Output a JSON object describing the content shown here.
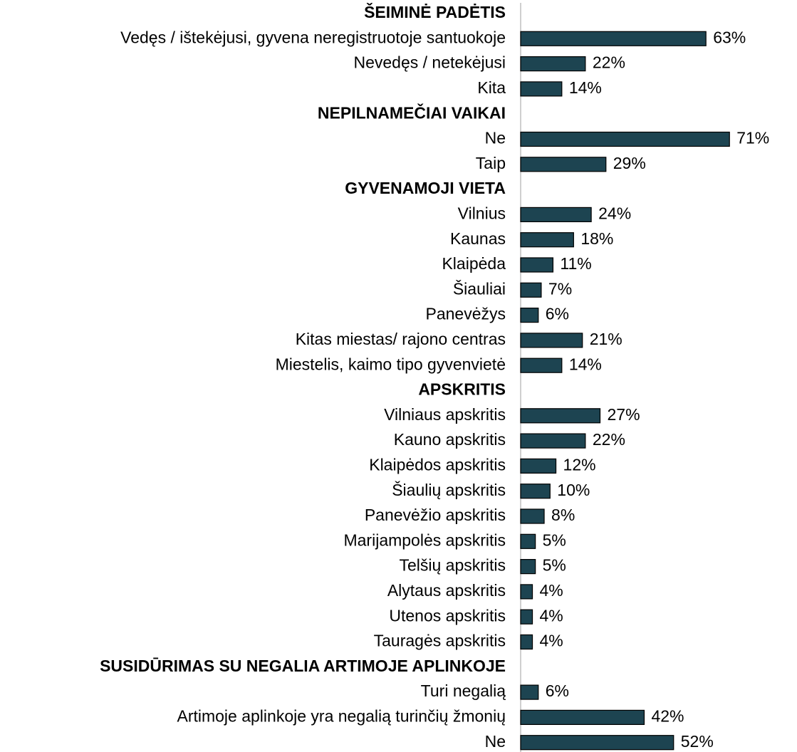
{
  "chart_data": {
    "type": "bar",
    "orientation": "horizontal",
    "color": "#1d4451",
    "groups": [
      {
        "title": "ŠEIMINĖ PADĖTIS",
        "categories": [
          "Vedęs / ištekėjusi, gyvena neregistruotoje santuokoje",
          "Nevedęs / netekėjusi",
          "Kita"
        ],
        "values": [
          63,
          22,
          14
        ],
        "value_labels": [
          "63%",
          "22%",
          "14%"
        ]
      },
      {
        "title": "NEPILNAMEČIAI VAIKAI",
        "categories": [
          "Ne",
          "Taip"
        ],
        "values": [
          71,
          29
        ],
        "value_labels": [
          "71%",
          "29%"
        ]
      },
      {
        "title": "GYVENAMOJI VIETA",
        "categories": [
          "Vilnius",
          "Kaunas",
          "Klaipėda",
          "Šiauliai",
          "Panevėžys",
          "Kitas miestas/ rajono centras",
          "Miestelis, kaimo tipo gyvenvietė"
        ],
        "values": [
          24,
          18,
          11,
          7,
          6,
          21,
          14
        ],
        "value_labels": [
          "24%",
          "18%",
          "11%",
          "7%",
          "6%",
          "21%",
          "14%"
        ]
      },
      {
        "title": "APSKRITIS",
        "categories": [
          "Vilniaus apskritis",
          "Kauno apskritis",
          "Klaipėdos apskritis",
          "Šiaulių apskritis",
          "Panevėžio apskritis",
          "Marijampolės apskritis",
          "Telšių apskritis",
          "Alytaus apskritis",
          "Utenos apskritis",
          "Tauragės apskritis"
        ],
        "values": [
          27,
          22,
          12,
          10,
          8,
          5,
          5,
          4,
          4,
          4
        ],
        "value_labels": [
          "27%",
          "22%",
          "12%",
          "10%",
          "8%",
          "5%",
          "5%",
          "4%",
          "4%",
          "4%"
        ]
      },
      {
        "title": "SUSIDŪRIMAS SU NEGALIA ARTIMOJE APLINKOJE",
        "categories": [
          "Turi negalią",
          "Artimoje aplinkoje yra negalią turinčių žmonių",
          "Ne"
        ],
        "values": [
          6,
          42,
          52
        ],
        "value_labels": [
          "6%",
          "42%",
          "52%"
        ]
      }
    ]
  }
}
